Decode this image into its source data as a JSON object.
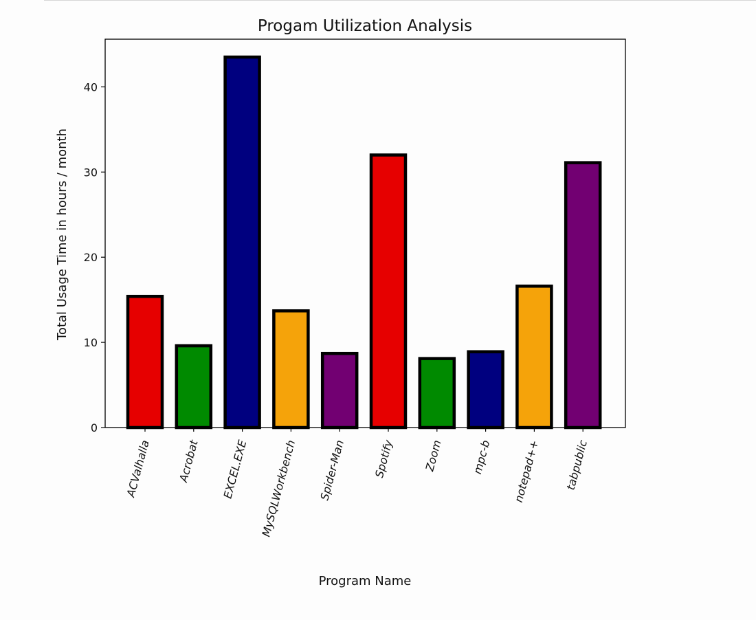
{
  "chart_data": {
    "type": "bar",
    "title": "Progam Utilization Analysis",
    "xlabel": "Program Name",
    "ylabel": "Total Usage Time in hours / month",
    "categories": [
      "ACValhalla",
      "Acrobat",
      "EXCEL.EXE",
      "MySQLWorkbench",
      "Spider-Man",
      "Spotify",
      "Zoom",
      "mpc-b",
      "notepad++",
      "tabpublic"
    ],
    "values": [
      15.4,
      9.6,
      43.5,
      13.7,
      8.7,
      32.0,
      8.1,
      8.9,
      16.6,
      31.1
    ],
    "colors": [
      "#e60000",
      "#008a00",
      "#00007f",
      "#f5a30a",
      "#720072",
      "#e60000",
      "#008a00",
      "#00007f",
      "#f5a30a",
      "#720072"
    ],
    "edge_color": "#000000",
    "ylim": [
      0,
      45.6
    ],
    "yticks": [
      0,
      10,
      20,
      30,
      40
    ],
    "grid": false,
    "legend": "none"
  }
}
